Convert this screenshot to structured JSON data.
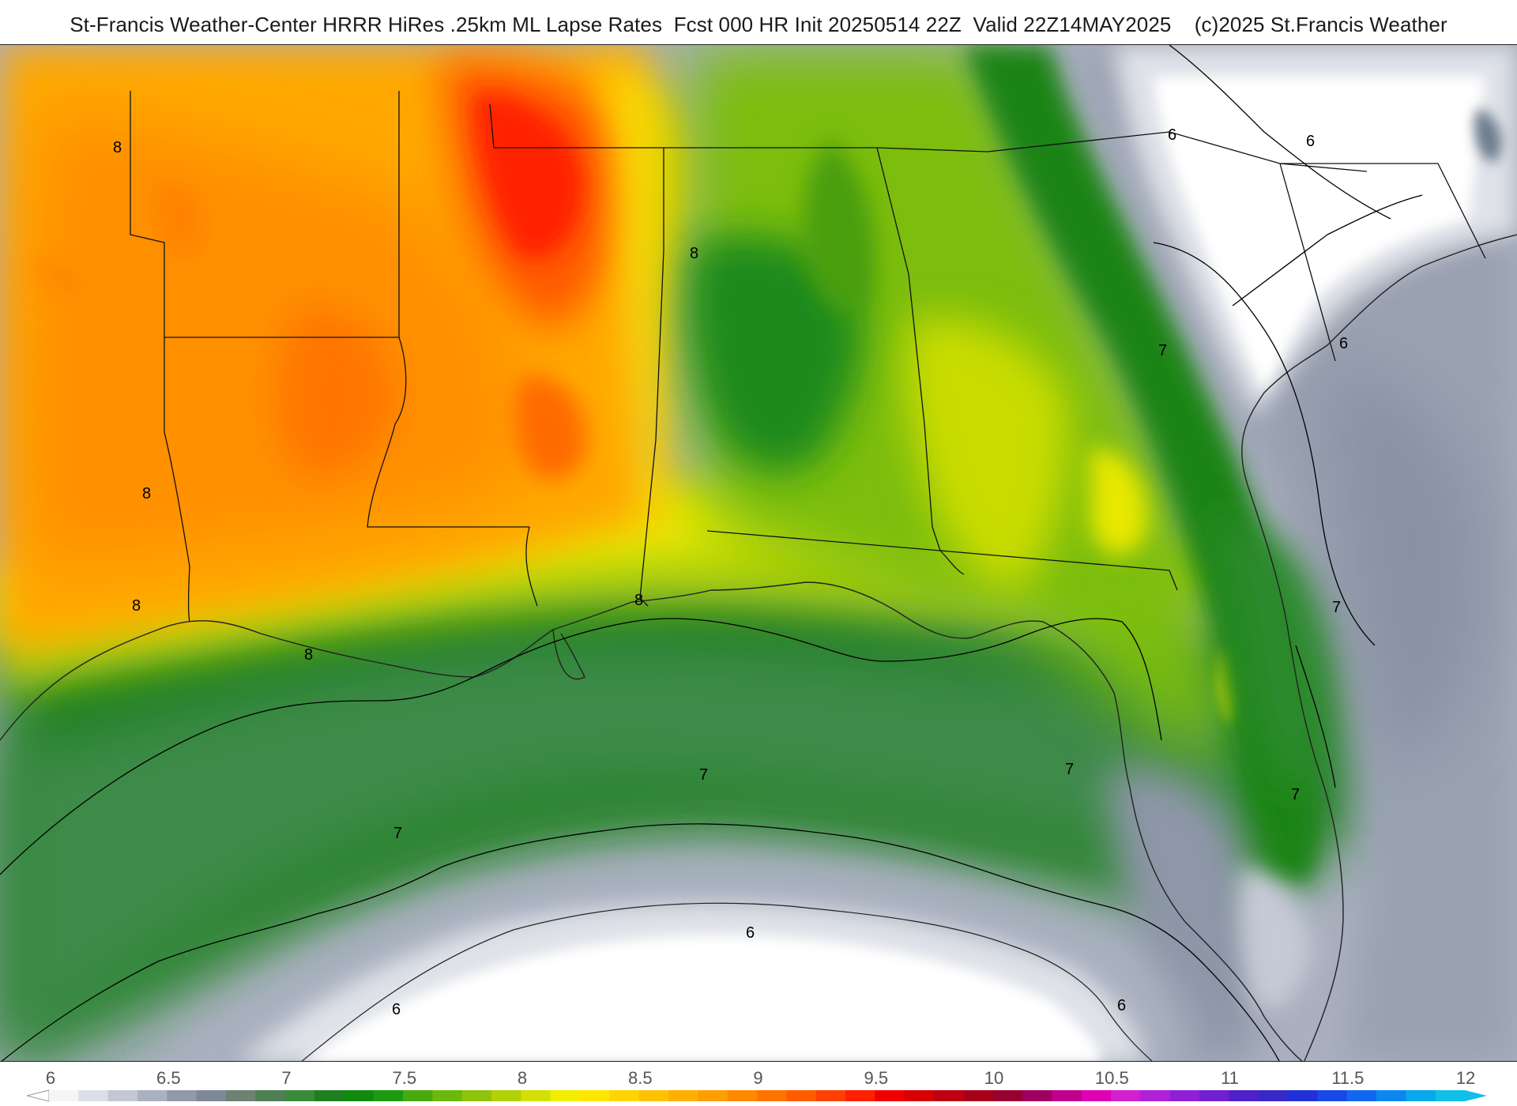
{
  "header": {
    "title": "St-Francis Weather-Center HRRR HiRes .25km ML Lapse Rates  Fcst 000 HR Init 20250514 22Z  Valid 22Z14MAY2025    (c)2025 St.Francis Weather"
  },
  "map": {
    "field": "ML Lapse Rates",
    "contour_labels": [
      "8",
      "8",
      "8",
      "8",
      "8",
      "8",
      "7",
      "7",
      "7",
      "7",
      "7",
      "7",
      "6",
      "6",
      "6",
      "6",
      "6",
      "6"
    ]
  },
  "colorbar": {
    "ticks": [
      "6",
      "6.5",
      "7",
      "7.5",
      "8",
      "8.5",
      "9",
      "9.5",
      "10",
      "10.5",
      "11",
      "11.5",
      "12"
    ],
    "colors": [
      "#f5f5f7",
      "#dcdfe6",
      "#c3c8d3",
      "#abb1c0",
      "#9299a8",
      "#7e8898",
      "#6c8272",
      "#4f7f54",
      "#3a8a3a",
      "#1e7f1e",
      "#0f8a0f",
      "#1c9a12",
      "#47aa0f",
      "#6cb80c",
      "#8fc40a",
      "#b2d106",
      "#d4e003",
      "#f2ee00",
      "#ffe600",
      "#ffd400",
      "#ffc200",
      "#ffb000",
      "#ff9e00",
      "#ff8a00",
      "#ff7400",
      "#ff5c00",
      "#ff4000",
      "#ff2000",
      "#f00000",
      "#d80000",
      "#c00010",
      "#a80018",
      "#980030",
      "#a00060",
      "#c0008c",
      "#e000b4",
      "#d020d0",
      "#b020d8",
      "#9020d8",
      "#7020d0",
      "#5020c8",
      "#3828c8",
      "#2030d8",
      "#1848e8",
      "#1068f0",
      "#0a88f0",
      "#08a8ec",
      "#10c0e8"
    ]
  }
}
